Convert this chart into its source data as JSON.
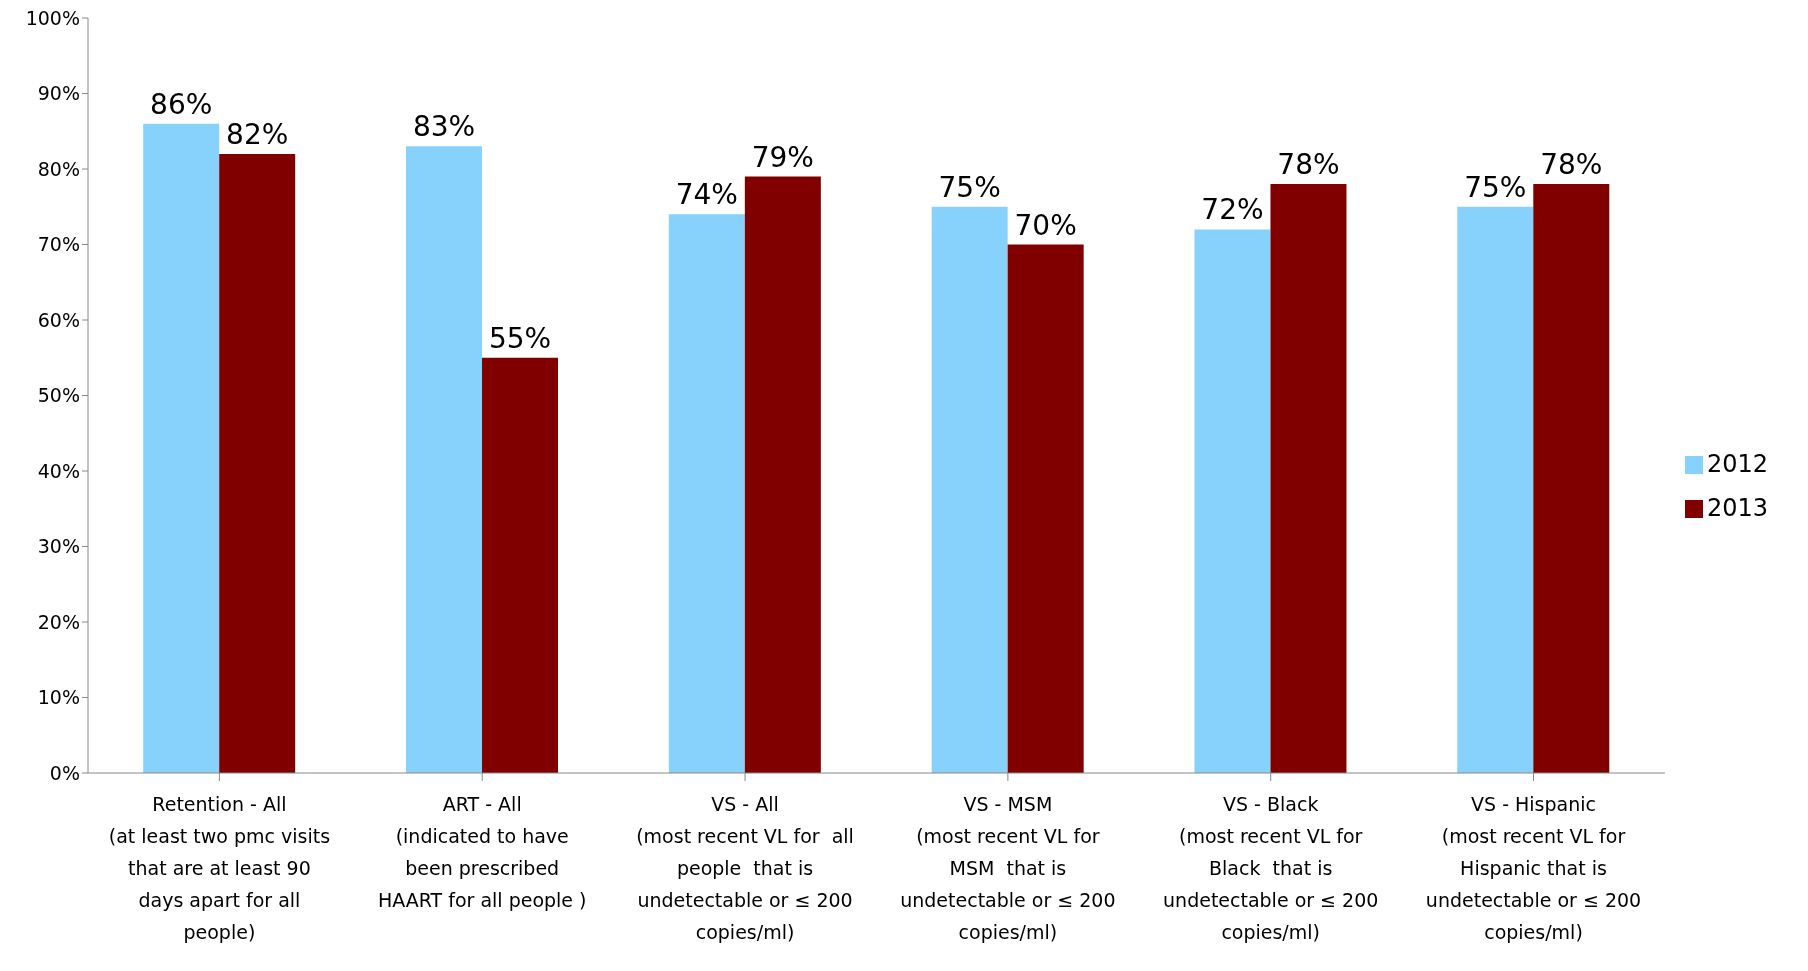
{
  "chart_data": {
    "type": "bar",
    "categories": [
      "Retention - All\n(at least two pmc visits\nthat are at least 90\ndays apart for all\npeople)",
      "ART - All\n(indicated to have\nbeen prescribed\nHAART for all people )",
      "VS - All\n(most recent VL for  all\npeople  that is\nundetectable or ≤ 200\ncopies/ml)",
      "VS - MSM\n(most recent VL for\nMSM  that is\nundetectable or ≤ 200\ncopies/ml)",
      "VS - Black\n(most recent VL for\nBlack  that is\nundetectable or ≤ 200\ncopies/ml)",
      "VS - Hispanic\n(most recent VL for\nHispanic that is\nundetectable or ≤ 200\ncopies/ml)"
    ],
    "series": [
      {
        "name": "2012",
        "color": "#87d1fd",
        "values": [
          86,
          83,
          74,
          75,
          72,
          75
        ],
        "value_labels": [
          "86%",
          "83%",
          "74%",
          "75%",
          "72%",
          "75%"
        ]
      },
      {
        "name": "2013",
        "color": "#800000",
        "values": [
          82,
          55,
          79,
          70,
          78,
          78
        ],
        "value_labels": [
          "82%",
          "55%",
          "79%",
          "70%",
          "78%",
          "78%"
        ]
      }
    ],
    "ylim": [
      0,
      100
    ],
    "yticks": [
      {
        "value": 0,
        "label": "0%"
      },
      {
        "value": 10,
        "label": "10%"
      },
      {
        "value": 20,
        "label": "20%"
      },
      {
        "value": 30,
        "label": "30%"
      },
      {
        "value": 40,
        "label": "40%"
      },
      {
        "value": 50,
        "label": "50%"
      },
      {
        "value": 60,
        "label": "60%"
      },
      {
        "value": 70,
        "label": "70%"
      },
      {
        "value": 80,
        "label": "80%"
      },
      {
        "value": 90,
        "label": "90%"
      },
      {
        "value": 100,
        "label": "100%"
      }
    ],
    "grid": false,
    "legend": "right"
  }
}
